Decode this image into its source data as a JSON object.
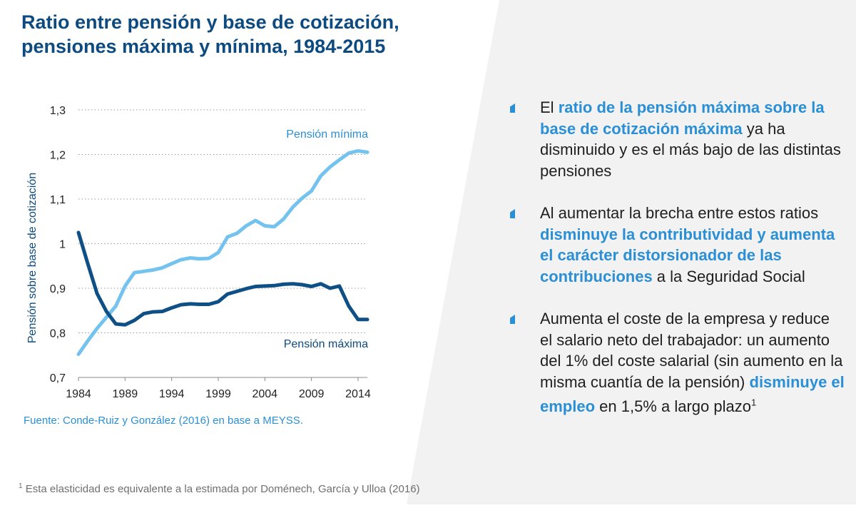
{
  "colors": {
    "title": "#0c4a7f",
    "accent": "#2a8fd4",
    "series_min": "#74c3ef",
    "series_max": "#0e4f85",
    "panel_bg": "#f2f2f3"
  },
  "source": "Fuente: Conde-Ruiz y González (2016) en base a MEYSS.",
  "footnote": {
    "mark": "1",
    "text": " Esta elasticidad es equivalente a la estimada por Doménech, García y Ulloa (2016)"
  },
  "bullets": [
    {
      "parts": [
        {
          "t": "El ",
          "hl": false
        },
        {
          "t": "ratio de la pensión máxima sobre la base de cotización máxima",
          "hl": true
        },
        {
          "t": " ya ha disminuido y es el más bajo de las distintas pensiones",
          "hl": false
        }
      ]
    },
    {
      "parts": [
        {
          "t": "Al aumentar la brecha entre estos ratios ",
          "hl": false
        },
        {
          "t": "disminuye la contributividad y aumenta el carácter distorsionador de las contribuciones",
          "hl": true
        },
        {
          "t": " a la Seguridad Social",
          "hl": false
        }
      ]
    },
    {
      "parts": [
        {
          "t": "Aumenta el coste de la empresa y reduce el salario neto del trabajador: un aumento del 1% del coste salarial (sin aumento en la misma cuantía de la pensión) ",
          "hl": false
        },
        {
          "t": "disminuye el empleo",
          "hl": true
        },
        {
          "t": " en 1,5% a largo plazo",
          "hl": false
        }
      ],
      "sup": "1"
    }
  ],
  "chart_data": {
    "type": "line",
    "title": "Ratio entre pensión y base de cotización, pensiones máxima y mínima, 1984-2015",
    "xlabel": "",
    "ylabel": "Pensión sobre base de cotización",
    "xlim": [
      1984,
      2015
    ],
    "ylim": [
      0.7,
      1.3
    ],
    "x_ticks": [
      1984,
      1989,
      1994,
      1999,
      2004,
      2009,
      2014
    ],
    "y_ticks": [
      "0,7",
      "0,8",
      "0,9",
      "1",
      "1,1",
      "1,2",
      "1,3"
    ],
    "y_tick_values": [
      0.7,
      0.8,
      0.9,
      1.0,
      1.1,
      1.2,
      1.3
    ],
    "grid": "horizontal-dotted",
    "series": [
      {
        "name": "Pensión mínima",
        "color": "#74c3ef",
        "points": [
          [
            1984,
            0.752
          ],
          [
            1985,
            0.782
          ],
          [
            1986,
            0.81
          ],
          [
            1987,
            0.835
          ],
          [
            1988,
            0.86
          ],
          [
            1989,
            0.905
          ],
          [
            1990,
            0.935
          ],
          [
            1991,
            0.938
          ],
          [
            1992,
            0.941
          ],
          [
            1993,
            0.946
          ],
          [
            1994,
            0.955
          ],
          [
            1995,
            0.964
          ],
          [
            1996,
            0.968
          ],
          [
            1997,
            0.966
          ],
          [
            1998,
            0.967
          ],
          [
            1999,
            0.98
          ],
          [
            2000,
            1.015
          ],
          [
            2001,
            1.023
          ],
          [
            2002,
            1.04
          ],
          [
            2003,
            1.052
          ],
          [
            2004,
            1.04
          ],
          [
            2005,
            1.038
          ],
          [
            2006,
            1.055
          ],
          [
            2007,
            1.082
          ],
          [
            2008,
            1.102
          ],
          [
            2009,
            1.118
          ],
          [
            2010,
            1.152
          ],
          [
            2011,
            1.172
          ],
          [
            2012,
            1.188
          ],
          [
            2013,
            1.203
          ],
          [
            2014,
            1.208
          ],
          [
            2015,
            1.205
          ]
        ]
      },
      {
        "name": "Pensión máxima",
        "color": "#0e4f85",
        "points": [
          [
            1984,
            1.025
          ],
          [
            1985,
            0.955
          ],
          [
            1986,
            0.888
          ],
          [
            1987,
            0.848
          ],
          [
            1988,
            0.82
          ],
          [
            1989,
            0.818
          ],
          [
            1990,
            0.828
          ],
          [
            1991,
            0.843
          ],
          [
            1992,
            0.847
          ],
          [
            1993,
            0.848
          ],
          [
            1994,
            0.856
          ],
          [
            1995,
            0.863
          ],
          [
            1996,
            0.865
          ],
          [
            1997,
            0.864
          ],
          [
            1998,
            0.864
          ],
          [
            1999,
            0.87
          ],
          [
            2000,
            0.887
          ],
          [
            2001,
            0.893
          ],
          [
            2002,
            0.899
          ],
          [
            2003,
            0.904
          ],
          [
            2004,
            0.905
          ],
          [
            2005,
            0.906
          ],
          [
            2006,
            0.909
          ],
          [
            2007,
            0.91
          ],
          [
            2008,
            0.908
          ],
          [
            2009,
            0.904
          ],
          [
            2010,
            0.91
          ],
          [
            2011,
            0.9
          ],
          [
            2012,
            0.905
          ],
          [
            2013,
            0.86
          ],
          [
            2014,
            0.83
          ],
          [
            2015,
            0.83
          ]
        ]
      }
    ]
  }
}
